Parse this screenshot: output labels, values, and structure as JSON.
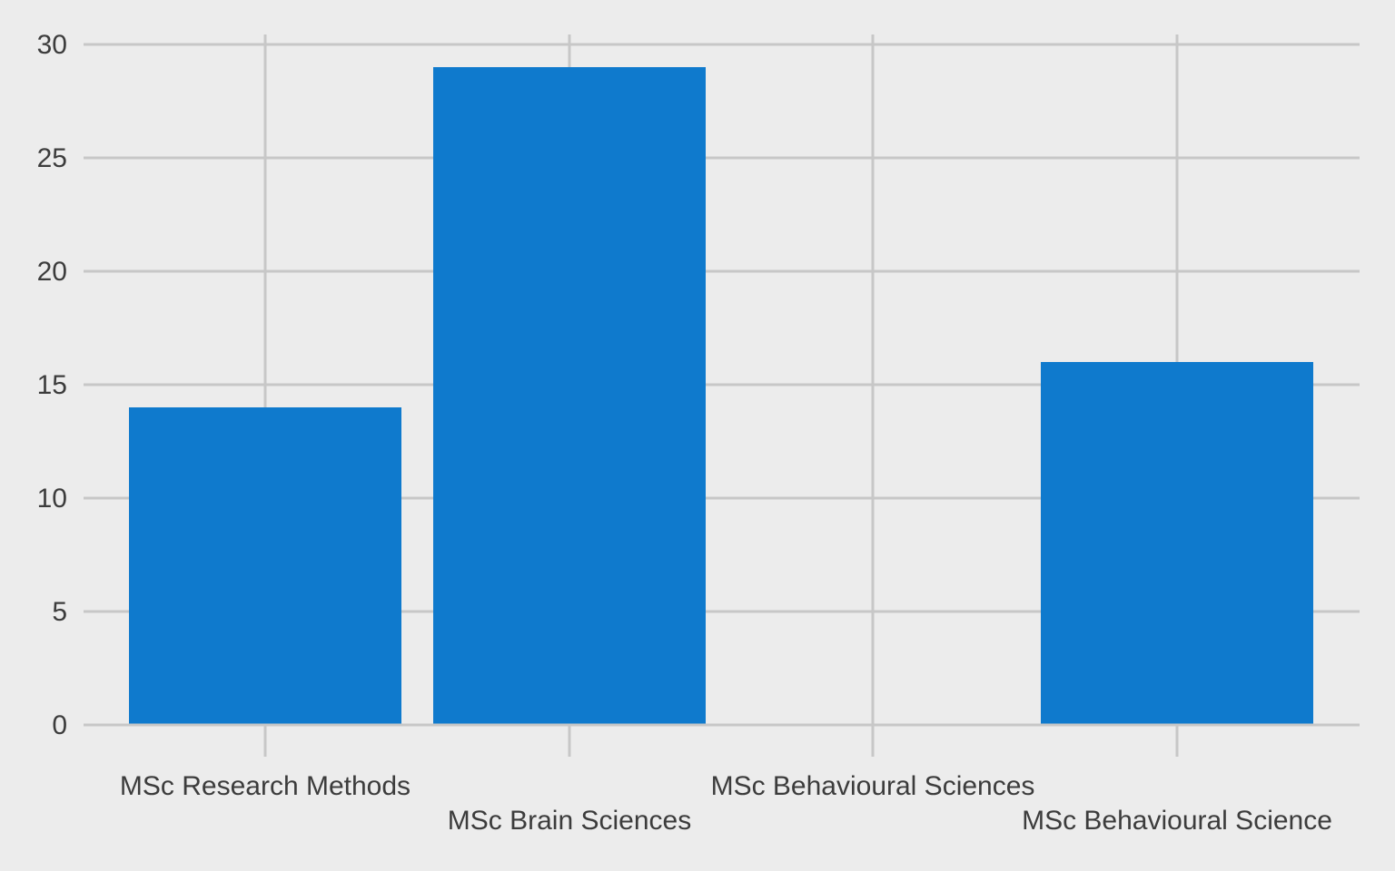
{
  "chart_data": {
    "type": "bar",
    "title": "",
    "xlabel": "",
    "ylabel": "",
    "categories": [
      "MSc Research Methods",
      "MSc Brain Sciences",
      "MSc Behavioural Sciences",
      "MSc Behavioural Science"
    ],
    "values": [
      14,
      29,
      0,
      16
    ],
    "ylim": [
      0,
      30
    ],
    "yticks": [
      0,
      5,
      10,
      15,
      20,
      25,
      30
    ],
    "grid": true,
    "legend": "none",
    "colors": {
      "bar": "#0f7acd",
      "background": "#ececec",
      "grid": "#c7c7c7",
      "text": "#3c3c3c"
    }
  }
}
